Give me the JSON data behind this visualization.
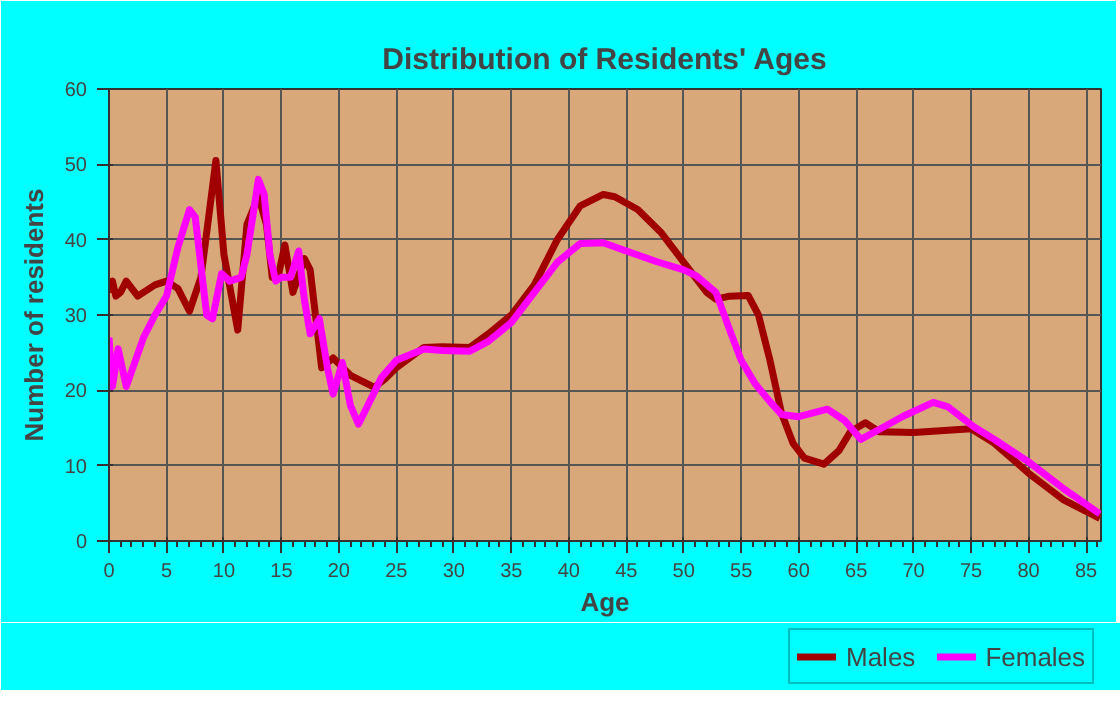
{
  "chart_data": {
    "type": "line",
    "title": "Distribution of Residents' Ages",
    "xlabel": "Age",
    "ylabel": "Number of residents",
    "xlim": [
      0,
      86.3
    ],
    "ylim": [
      0,
      60
    ],
    "xticks": [
      0,
      5,
      10,
      15,
      20,
      25,
      30,
      35,
      40,
      45,
      50,
      55,
      60,
      65,
      70,
      75,
      80,
      85
    ],
    "yticks": [
      0,
      10,
      20,
      30,
      40,
      50,
      60
    ],
    "grid": true,
    "legend": "bottom",
    "line_style": "solid",
    "marker": "none",
    "series": [
      {
        "name": "Males",
        "color": "#a00000",
        "x": [
          0,
          0.3,
          0.6,
          1,
          1.5,
          2.5,
          4,
          5,
          6,
          7,
          8,
          9.3,
          10,
          11.2,
          12,
          13,
          13.7,
          14.2,
          14.7,
          15.3,
          16,
          17,
          17.5,
          18.5,
          19.5,
          21,
          23.1,
          24,
          25,
          27.4,
          29,
          31.4,
          33,
          35,
          37,
          39,
          41,
          43,
          44,
          46,
          48,
          50,
          52,
          52.8,
          54,
          55.6,
          56.5,
          57.5,
          58.5,
          59.5,
          60.5,
          62.2,
          63.5,
          64.5,
          65.8,
          67,
          70,
          72,
          75,
          77,
          80,
          83,
          86.2
        ],
        "values": [
          33,
          34.5,
          32.5,
          33,
          34.5,
          32.5,
          34,
          34.5,
          33.5,
          30.5,
          35,
          50.5,
          38,
          28,
          42,
          45.8,
          42,
          35,
          35,
          39.3,
          33,
          37.5,
          36,
          23,
          24.3,
          22,
          20.4,
          21.5,
          23,
          25.7,
          25.8,
          25.7,
          27.5,
          30,
          34,
          40,
          44.5,
          46,
          45.7,
          44,
          41,
          37,
          33,
          32.1,
          32.5,
          32.6,
          30,
          24,
          17,
          13,
          11,
          10.2,
          12,
          14.5,
          15.7,
          14.5,
          14.4,
          14.6,
          14.9,
          13,
          9,
          5.5,
          3
        ]
      },
      {
        "name": "Females",
        "color": "#ff00ff",
        "x": [
          0,
          0.3,
          0.8,
          1.5,
          3,
          4,
          5,
          6,
          7,
          7.5,
          8.5,
          9,
          9.8,
          10.5,
          11.5,
          12,
          13,
          13.5,
          14,
          14.5,
          15,
          15.8,
          16.5,
          17,
          17.5,
          18.3,
          19,
          19.5,
          20.3,
          21,
          21.7,
          23,
          23.7,
          25,
          27.4,
          29,
          31.4,
          33,
          35,
          37,
          39,
          41,
          43,
          45,
          47.6,
          50,
          51.1,
          52.8,
          54,
          55,
          56.2,
          57.5,
          58.5,
          60,
          62.5,
          64,
          65.4,
          67,
          69,
          71.7,
          73,
          75.2,
          77,
          80,
          83,
          86.2
        ],
        "values": [
          27,
          20.5,
          25.5,
          20.5,
          27,
          30,
          32.5,
          39,
          44,
          43,
          30,
          29.5,
          35.5,
          34.5,
          35,
          38,
          48,
          46,
          38,
          34.5,
          35,
          35,
          38.5,
          32,
          27.5,
          29.5,
          23,
          19.5,
          23.7,
          18,
          15.5,
          19.5,
          21.7,
          24,
          25.5,
          25.3,
          25.2,
          26.5,
          29,
          33,
          37,
          39.5,
          39.6,
          38.5,
          37.1,
          36,
          35.2,
          33,
          28,
          24,
          20.9,
          18.5,
          16.8,
          16.5,
          17.5,
          16,
          13.5,
          14.8,
          16.5,
          18.4,
          17.8,
          15.2,
          13.5,
          10.5,
          7,
          3.6
        ]
      }
    ]
  }
}
